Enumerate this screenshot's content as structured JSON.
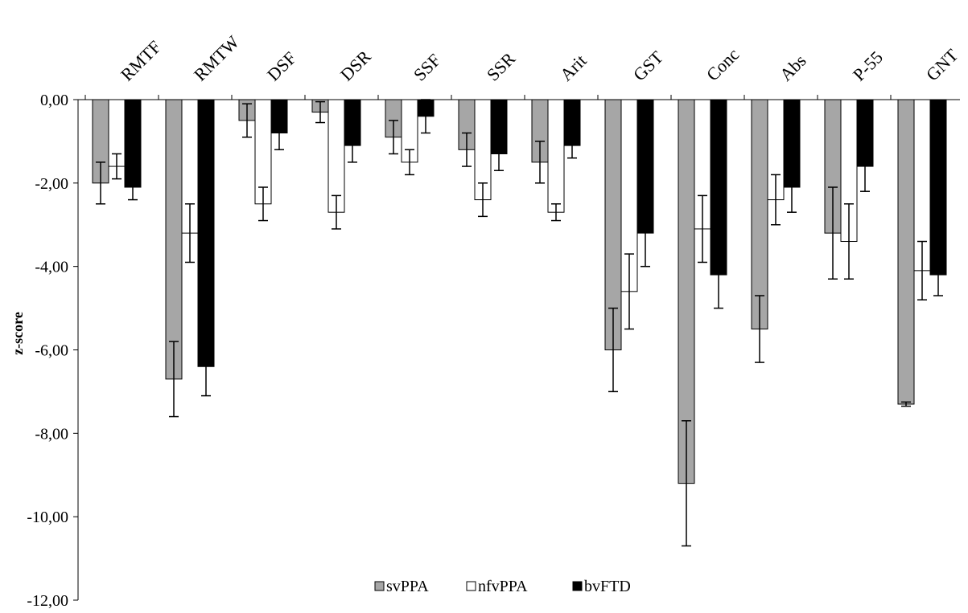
{
  "chart_data": {
    "type": "bar",
    "categories": [
      "RMTF",
      "RMTW",
      "DSF",
      "DSR",
      "SSF",
      "SSR",
      "Arit",
      "GST",
      "Conc",
      "Abs",
      "P-55",
      "GNT"
    ],
    "series": [
      {
        "name": "svPPA",
        "color": "#a6a6a6",
        "values": [
          -2.0,
          -6.7,
          -0.5,
          -0.3,
          -0.9,
          -1.2,
          -1.5,
          -6.0,
          -9.2,
          -5.5,
          -3.2,
          -7.3
        ],
        "errors": [
          0.5,
          0.9,
          0.4,
          0.25,
          0.4,
          0.4,
          0.5,
          1.0,
          1.5,
          0.8,
          1.1,
          0.05
        ]
      },
      {
        "name": "nfvPPA",
        "color": "#ffffff",
        "values": [
          -1.6,
          -3.2,
          -2.5,
          -2.7,
          -1.5,
          -2.4,
          -2.7,
          -4.6,
          -3.1,
          -2.4,
          -3.4,
          -4.1
        ],
        "errors": [
          0.3,
          0.7,
          0.4,
          0.4,
          0.3,
          0.4,
          0.2,
          0.9,
          0.8,
          0.6,
          0.9,
          0.7
        ]
      },
      {
        "name": "bvFTD",
        "color": "#000000",
        "values": [
          -2.1,
          -6.4,
          -0.8,
          -1.1,
          -0.4,
          -1.3,
          -1.1,
          -3.2,
          -4.2,
          -2.1,
          -1.6,
          -4.2
        ],
        "errors": [
          0.3,
          0.7,
          0.4,
          0.4,
          0.4,
          0.4,
          0.3,
          0.8,
          0.8,
          0.6,
          0.6,
          0.5
        ]
      }
    ],
    "ylabel": "z-score",
    "xlabel": "",
    "ylim": [
      -12,
      0
    ],
    "yticks": [
      0,
      -2,
      -4,
      -6,
      -8,
      -10,
      -12
    ],
    "ytick_labels": [
      "0,00",
      "-2,00",
      "-4,00",
      "-6,00",
      "-8,00",
      "-10,00",
      "-12,00"
    ],
    "category_label_position": "top",
    "grid": false,
    "legend_position": "bottom-center"
  }
}
